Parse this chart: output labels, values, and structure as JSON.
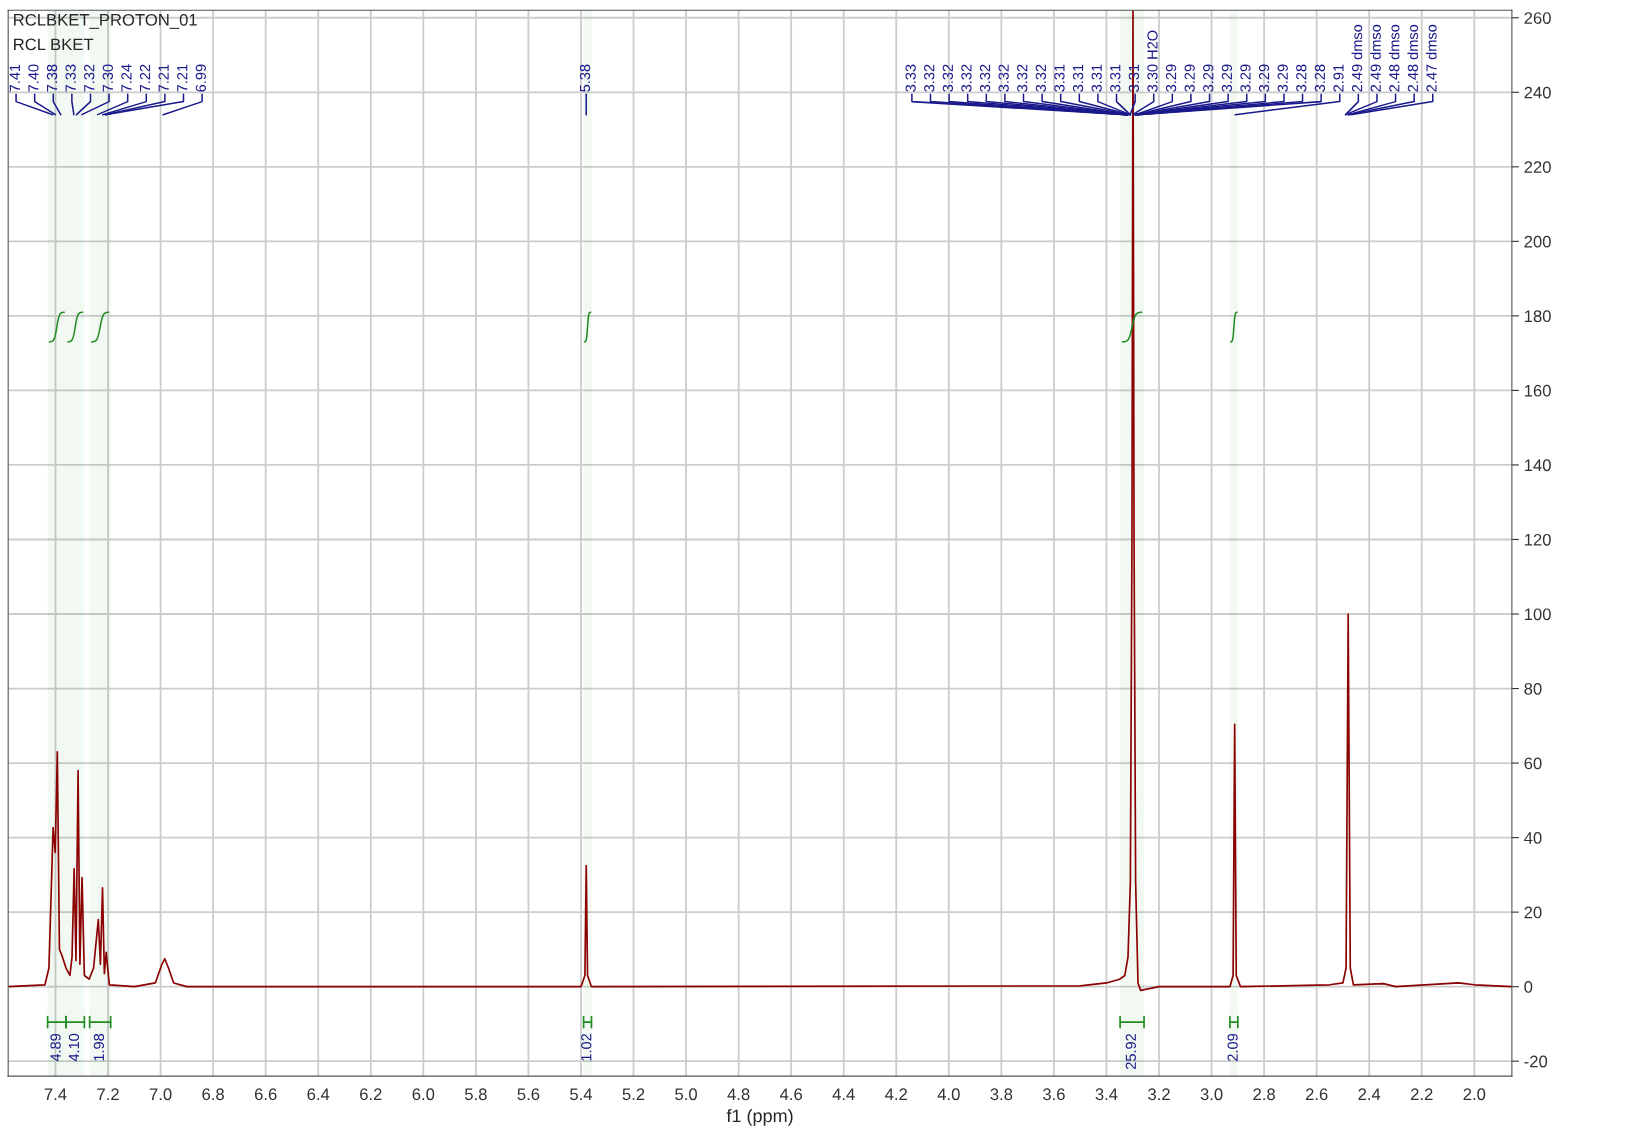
{
  "chart_data": {
    "type": "line",
    "title": "RCLBKET_PROTON_01",
    "subtitle": "RCL BKET",
    "xlabel": "f1 (ppm)",
    "xlim": [
      7.58,
      1.857
    ],
    "ylim": [
      -24,
      262
    ],
    "xticks": [
      7.4,
      7.2,
      {
        "value": 7.0,
        "label": "7.0"
      },
      6.8,
      6.6,
      6.4,
      6.2,
      {
        "value": 6.0,
        "label": "6.0"
      },
      5.8,
      5.6,
      5.4,
      5.2,
      {
        "value": 5.0,
        "label": "5.0"
      },
      4.8,
      4.6,
      4.4,
      4.2,
      {
        "value": 4.0,
        "label": "4.0"
      },
      3.8,
      3.6,
      3.4,
      3.2,
      {
        "value": 3.0,
        "label": "3.0"
      },
      2.8,
      2.6,
      2.4,
      2.2,
      {
        "value": 2.0,
        "label": "2.0"
      }
    ],
    "yticks": [
      -20,
      0,
      20,
      40,
      60,
      80,
      100,
      120,
      140,
      160,
      180,
      200,
      220,
      240,
      260
    ],
    "grid": true,
    "legend": false,
    "series": [
      {
        "color": "#8b0000",
        "x": [
          7.58,
          7.44,
          7.425,
          7.409,
          7.401,
          7.393,
          7.385,
          7.376,
          7.36,
          7.345,
          7.337,
          7.329,
          7.322,
          7.314,
          7.307,
          7.299,
          7.29,
          7.272,
          7.255,
          7.237,
          7.229,
          7.221,
          7.214,
          7.207,
          7.195,
          7.1,
          7.02,
          6.995,
          6.984,
          6.97,
          6.95,
          6.9,
          5.4,
          5.385,
          5.38,
          5.375,
          5.36,
          3.5,
          3.4,
          3.35,
          3.33,
          3.318,
          3.309,
          3.303,
          3.299,
          3.295,
          3.289,
          3.28,
          3.27,
          3.2,
          2.93,
          2.918,
          2.912,
          2.906,
          2.89,
          2.55,
          2.5,
          2.488,
          2.48,
          2.472,
          2.46,
          2.345,
          2.3,
          2.06,
          2.0,
          1.857
        ],
        "values": [
          0,
          0.5,
          5,
          42.7,
          36,
          63,
          10,
          8.5,
          5,
          3,
          8,
          31.6,
          7,
          58,
          6,
          29.3,
          3,
          2,
          5,
          18,
          6,
          26.5,
          3.5,
          9.2,
          0.5,
          0,
          1,
          6,
          7.5,
          5,
          1,
          0,
          0,
          3,
          32.5,
          3,
          0,
          0.2,
          1,
          2,
          3,
          8,
          28,
          120,
          262,
          120,
          28,
          1,
          -1,
          0,
          0,
          3,
          70.4,
          3,
          0,
          0.5,
          1,
          5,
          100,
          5,
          0.5,
          0.8,
          0,
          1,
          0.5,
          0
        ]
      }
    ],
    "bands": [
      {
        "axis": "x",
        "from": 7.43,
        "to": 7.36,
        "label": "4.89",
        "color": "#228b22"
      },
      {
        "axis": "x",
        "from": 7.36,
        "to": 7.29,
        "label": "4.10",
        "color": "#228b22"
      },
      {
        "axis": "x",
        "from": 7.27,
        "to": 7.19,
        "label": "1.98",
        "color": "#228b22"
      },
      {
        "axis": "x",
        "from": 5.39,
        "to": 5.36,
        "label": "1.02",
        "color": "#228b22"
      },
      {
        "axis": "x",
        "from": 3.348,
        "to": 3.257,
        "label": "25.92",
        "color": "#228b22"
      },
      {
        "axis": "x",
        "from": 2.93,
        "to": 2.9,
        "label": "2.09",
        "color": "#228b22"
      }
    ],
    "annotations": [
      {
        "text": "7.41",
        "x": 7.41
      },
      {
        "text": "7.40",
        "x": 7.4
      },
      {
        "text": "7.38",
        "x": 7.38
      },
      {
        "text": "7.33",
        "x": 7.33
      },
      {
        "text": "7.32",
        "x": 7.32
      },
      {
        "text": "7.30",
        "x": 7.3
      },
      {
        "text": "7.24",
        "x": 7.24
      },
      {
        "text": "7.22",
        "x": 7.22
      },
      {
        "text": "7.21",
        "x": 7.21
      },
      {
        "text": "7.21",
        "x": 7.21
      },
      {
        "text": "6.99",
        "x": 6.99
      },
      {
        "text": "5.38",
        "x": 5.38
      },
      {
        "text": "3.33",
        "x": 3.33
      },
      {
        "text": "3.32",
        "x": 3.32
      },
      {
        "text": "3.32",
        "x": 3.32
      },
      {
        "text": "3.32",
        "x": 3.32
      },
      {
        "text": "3.32",
        "x": 3.32
      },
      {
        "text": "3.32",
        "x": 3.32
      },
      {
        "text": "3.32",
        "x": 3.32
      },
      {
        "text": "3.32",
        "x": 3.32
      },
      {
        "text": "3.31",
        "x": 3.31
      },
      {
        "text": "3.31",
        "x": 3.31
      },
      {
        "text": "3.31",
        "x": 3.31
      },
      {
        "text": "3.31",
        "x": 3.31
      },
      {
        "text": "3.31",
        "x": 3.31
      },
      {
        "text": "3.30 H2O",
        "x": 3.3
      },
      {
        "text": "3.29",
        "x": 3.29
      },
      {
        "text": "3.29",
        "x": 3.29
      },
      {
        "text": "3.29",
        "x": 3.29
      },
      {
        "text": "3.29",
        "x": 3.29
      },
      {
        "text": "3.29",
        "x": 3.29
      },
      {
        "text": "3.29",
        "x": 3.29
      },
      {
        "text": "3.29",
        "x": 3.29
      },
      {
        "text": "3.28",
        "x": 3.28
      },
      {
        "text": "3.28",
        "x": 3.28
      },
      {
        "text": "2.91",
        "x": 2.91
      },
      {
        "text": "2.49 dmso",
        "x": 2.49
      },
      {
        "text": "2.49 dmso",
        "x": 2.49
      },
      {
        "text": "2.48 dmso",
        "x": 2.48
      },
      {
        "text": "2.48 dmso",
        "x": 2.48
      },
      {
        "text": "2.47 dmso",
        "x": 2.47
      }
    ]
  }
}
